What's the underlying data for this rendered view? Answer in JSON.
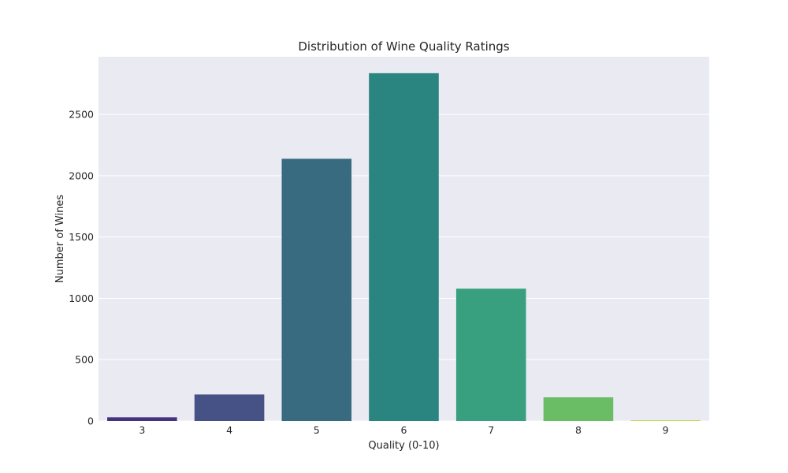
{
  "chart_data": {
    "type": "bar",
    "title": "Distribution of Wine Quality Ratings",
    "xlabel": "Quality (0-10)",
    "ylabel": "Number of Wines",
    "categories": [
      "3",
      "4",
      "5",
      "6",
      "7",
      "8",
      "9"
    ],
    "values": [
      30,
      216,
      2138,
      2836,
      1079,
      193,
      5
    ],
    "colors": [
      "#46327e",
      "#465186",
      "#386b80",
      "#2a8480",
      "#38a07e",
      "#6abd65",
      "#b8d431"
    ],
    "ylim": [
      0,
      2970
    ],
    "yticks": [
      0,
      500,
      1000,
      1500,
      2000,
      2500
    ],
    "grid": true,
    "background": "#eaeaf2",
    "grid_color": "#ffffff"
  }
}
